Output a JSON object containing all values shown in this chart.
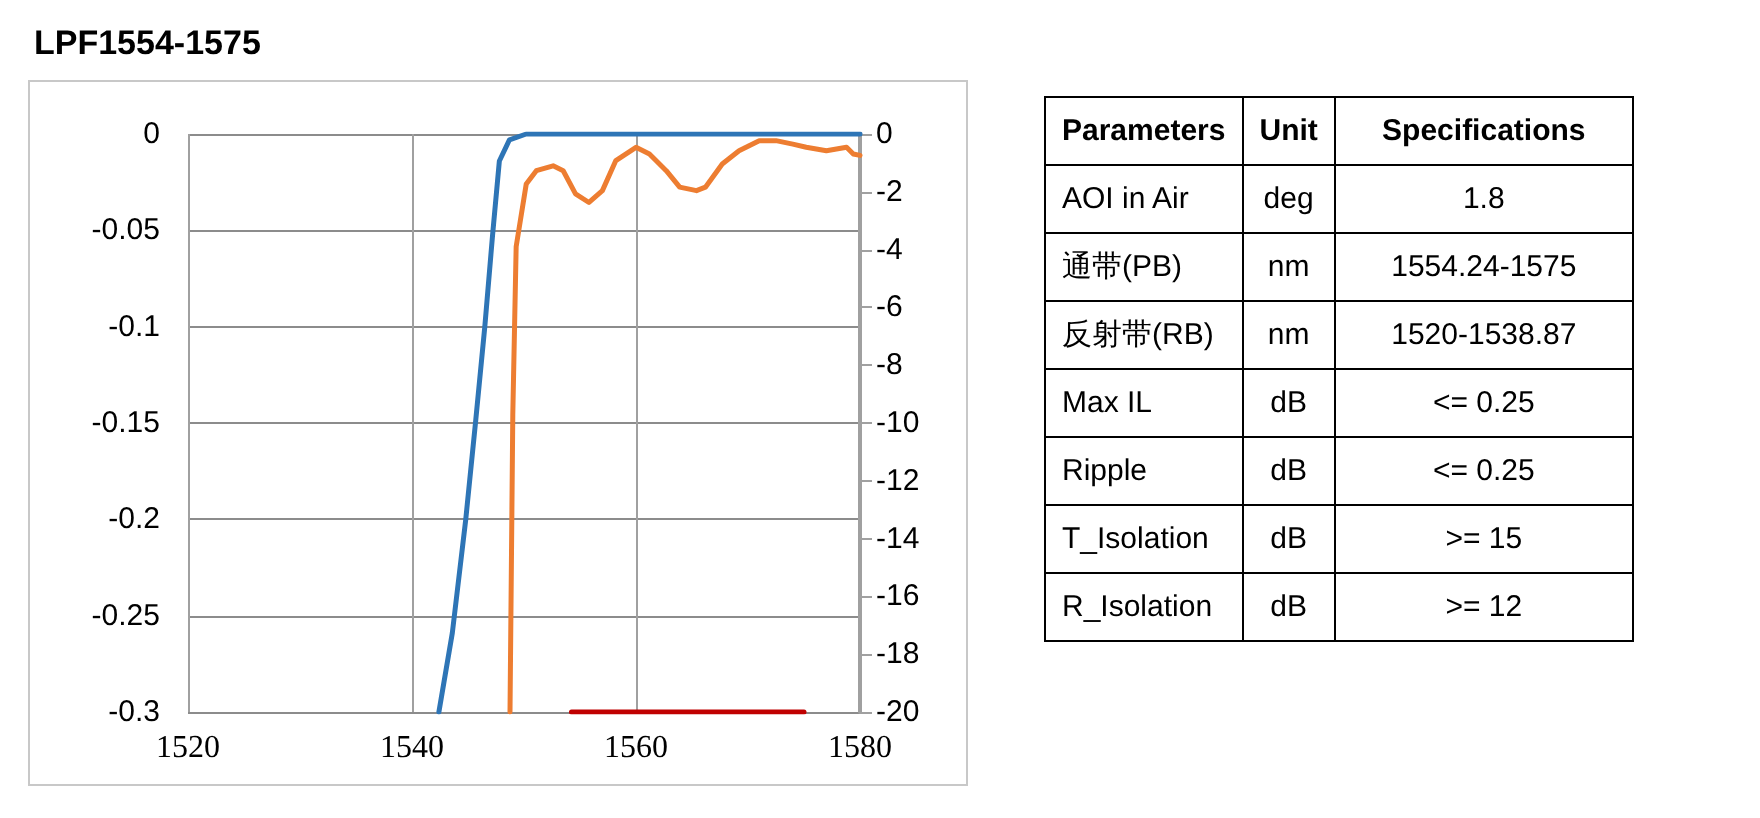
{
  "chart_data": [
    {
      "type": "line",
      "title": "LPF1554-1575",
      "xlim": [
        1520,
        1580
      ],
      "xticks": [
        1520,
        1540,
        1560,
        1580
      ],
      "ylim": [
        -0.3,
        0
      ],
      "yticks": [
        -0.3,
        -0.25,
        -0.2,
        -0.15,
        -0.1,
        -0.05,
        0
      ],
      "y2lim": [
        -20,
        0
      ],
      "y2ticks": [
        -20,
        -18,
        -16,
        -14,
        -12,
        -10,
        -8,
        -6,
        -4,
        -2,
        0
      ],
      "grid": true,
      "marker": "none",
      "line_style": "solid",
      "series": [
        {
          "color": "#2e75b6",
          "x": [
            1542.4,
            1543.6,
            1544.8,
            1545.7,
            1546.5,
            1547.2,
            1547.8,
            1548.7,
            1550.2,
            1580
          ],
          "values": [
            -0.3,
            -0.259,
            -0.2,
            -0.148,
            -0.1,
            -0.052,
            -0.014,
            -0.003,
            0,
            0
          ]
        },
        {
          "color": "#ed7d31",
          "axis": "y2",
          "x": [
            1548.75,
            1549,
            1549.3,
            1550.2,
            1551.1,
            1552.6,
            1553.5,
            1554.6,
            1555.8,
            1557,
            1558.2,
            1560,
            1561.2,
            1562.7,
            1563.9,
            1565.4,
            1566.2,
            1567.7,
            1569.2,
            1571,
            1572.5,
            1574,
            1575.2,
            1577,
            1578.8,
            1579.4,
            1580
          ],
          "values": [
            -20,
            -9.7,
            -3.9,
            -1.73,
            -1.27,
            -1.1,
            -1.27,
            -2.07,
            -2.37,
            -1.96,
            -0.92,
            -0.46,
            -0.69,
            -1.27,
            -1.84,
            -1.96,
            -1.84,
            -1.04,
            -0.58,
            -0.23,
            -0.23,
            -0.35,
            -0.46,
            -0.58,
            -0.46,
            -0.69,
            -0.74
          ]
        },
        {
          "color": "#c00000",
          "x": [
            1554.24,
            1575
          ],
          "values": [
            -0.3,
            -0.3
          ]
        }
      ]
    },
    {
      "type": "other",
      "categories": [
        "Parameters",
        "Unit",
        "Specifications"
      ],
      "cell_labels": [
        [
          "AOI in Air",
          "deg",
          "1.8"
        ],
        [
          "通带(PB)",
          "nm",
          "1554.24-1575"
        ],
        [
          "反射带(RB)",
          "nm",
          "1520-1538.87"
        ],
        [
          "Max IL",
          "dB",
          "<= 0.25"
        ],
        [
          "Ripple",
          "dB",
          "<= 0.25"
        ],
        [
          "T_Isolation",
          "dB",
          ">= 15"
        ],
        [
          "R_Isolation",
          "dB",
          ">= 12"
        ]
      ]
    }
  ]
}
